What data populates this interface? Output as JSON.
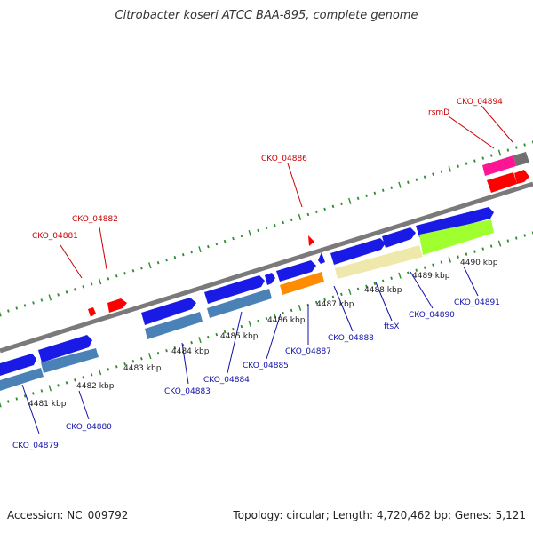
{
  "title": "Citrobacter koseri ATCC BAA-895, complete genome",
  "footer": {
    "accession": "Accession: NC_009792",
    "summary": "Topology: circular; Length: 4,720,462 bp; Genes: 5,121"
  },
  "colors": {
    "backbone": "#7a7a7a",
    "tick": "#2e8b2e",
    "label_red": "#cc0000",
    "label_blue": "#1111aa",
    "gene_blue": "#1a1ae6",
    "gene_red": "#ff0000",
    "steelblue": "#4a82b8",
    "orange": "#ff8c00",
    "khaki": "#eee8aa",
    "lime": "#9fff2f",
    "pink": "#ff1493",
    "grey": "#707070"
  },
  "scale_labels": [
    "4481 kbp",
    "4482 kbp",
    "4483 kbp",
    "4484 kbp",
    "4485 kbp",
    "4486 kbp",
    "4487 kbp",
    "4488 kbp",
    "4489 kbp",
    "4490 kbp"
  ],
  "gene_labels": {
    "top": [
      "CKO_04881",
      "CKO_04882",
      "CKO_04886",
      "rsmD",
      "CKO_04894"
    ],
    "bottom": [
      "CKO_04879",
      "CKO_04880",
      "CKO_04883",
      "CKO_04884",
      "CKO_04885",
      "CKO_04887",
      "CKO_04888",
      "ftsX",
      "CKO_04890",
      "CKO_04891"
    ]
  }
}
